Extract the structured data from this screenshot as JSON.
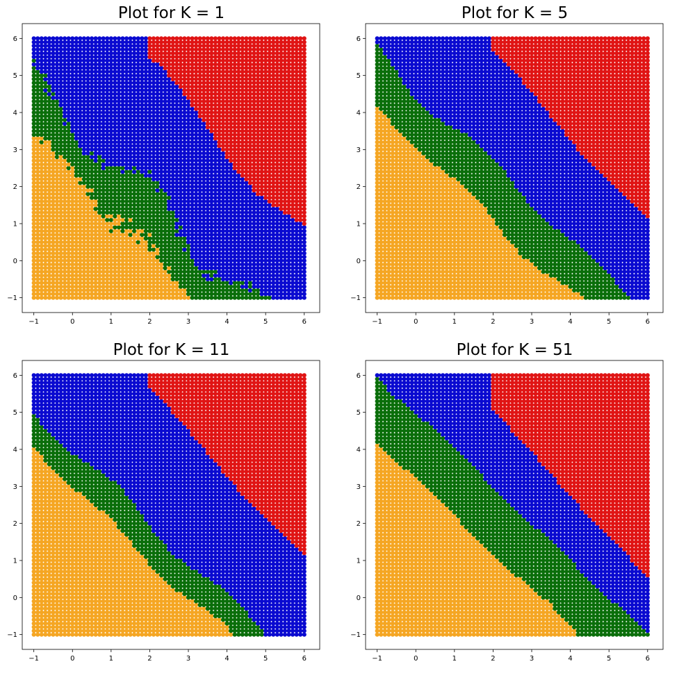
{
  "chart_data": [
    {
      "type": "scatter",
      "title": "Plot for K = 1",
      "k": 1,
      "xlabel": "",
      "ylabel": "",
      "xlim": [
        -1.3,
        6.4
      ],
      "ylim": [
        -1.4,
        6.4
      ],
      "x_ticks": [
        -1,
        0,
        1,
        2,
        3,
        4,
        5,
        6
      ],
      "y_ticks": [
        -1,
        0,
        1,
        2,
        3,
        4,
        5,
        6
      ],
      "grid": false,
      "point_grid": {
        "x_start": -1,
        "x_end": 6,
        "y_start": -1,
        "y_end": 6,
        "step": 0.1
      },
      "class_colors": {
        "orange": "#f5a623",
        "green": "#0a6e0a",
        "blue": "#0a0ad0",
        "red": "#e01414"
      },
      "region_boundaries": {
        "orange_green": 2.3,
        "green_blue": 3.7,
        "blue_red": 7.3
      },
      "irregular": 0.3
    },
    {
      "type": "scatter",
      "title": "Plot for K = 5",
      "k": 5,
      "xlabel": "",
      "ylabel": "",
      "xlim": [
        -1.3,
        6.4
      ],
      "ylim": [
        -1.4,
        6.4
      ],
      "x_ticks": [
        -1,
        0,
        1,
        2,
        3,
        4,
        5,
        6
      ],
      "y_ticks": [
        -1,
        0,
        1,
        2,
        3,
        4,
        5,
        6
      ],
      "grid": false,
      "point_grid": {
        "x_start": -1,
        "x_end": 6,
        "y_start": -1,
        "y_end": 6,
        "step": 0.1
      },
      "class_colors": {
        "orange": "#f5a623",
        "green": "#0a6e0a",
        "blue": "#0a0ad0",
        "red": "#e01414"
      },
      "region_boundaries": {
        "orange_green": 3.1,
        "green_blue": 4.6,
        "blue_red": 7.6
      },
      "irregular": 0.12
    },
    {
      "type": "scatter",
      "title": "Plot for K = 11",
      "k": 11,
      "xlabel": "",
      "ylabel": "",
      "xlim": [
        -1.3,
        6.4
      ],
      "ylim": [
        -1.4,
        6.4
      ],
      "x_ticks": [
        -1,
        0,
        1,
        2,
        3,
        4,
        5,
        6
      ],
      "y_ticks": [
        -1,
        0,
        1,
        2,
        3,
        4,
        5,
        6
      ],
      "grid": false,
      "point_grid": {
        "x_start": -1,
        "x_end": 6,
        "y_start": -1,
        "y_end": 6,
        "step": 0.1
      },
      "class_colors": {
        "orange": "#f5a623",
        "green": "#0a6e0a",
        "blue": "#0a0ad0",
        "red": "#e01414"
      },
      "region_boundaries": {
        "orange_green": 3.0,
        "green_blue": 4.0,
        "blue_red": 7.6
      },
      "irregular": 0.1
    },
    {
      "type": "scatter",
      "title": "Plot for K = 51",
      "k": 51,
      "xlabel": "",
      "ylabel": "",
      "xlim": [
        -1.3,
        6.4
      ],
      "ylim": [
        -1.4,
        6.4
      ],
      "x_ticks": [
        -1,
        0,
        1,
        2,
        3,
        4,
        5,
        6
      ],
      "y_ticks": [
        -1,
        0,
        1,
        2,
        3,
        4,
        5,
        6
      ],
      "grid": false,
      "point_grid": {
        "x_start": -1,
        "x_end": 6,
        "y_start": -1,
        "y_end": 6,
        "step": 0.1
      },
      "class_colors": {
        "orange": "#f5a623",
        "green": "#0a6e0a",
        "blue": "#0a0ad0",
        "red": "#e01414"
      },
      "region_boundaries": {
        "orange_green": 3.2,
        "green_blue": 5.0,
        "blue_red": 7.1
      },
      "irregular": 0.05
    }
  ]
}
